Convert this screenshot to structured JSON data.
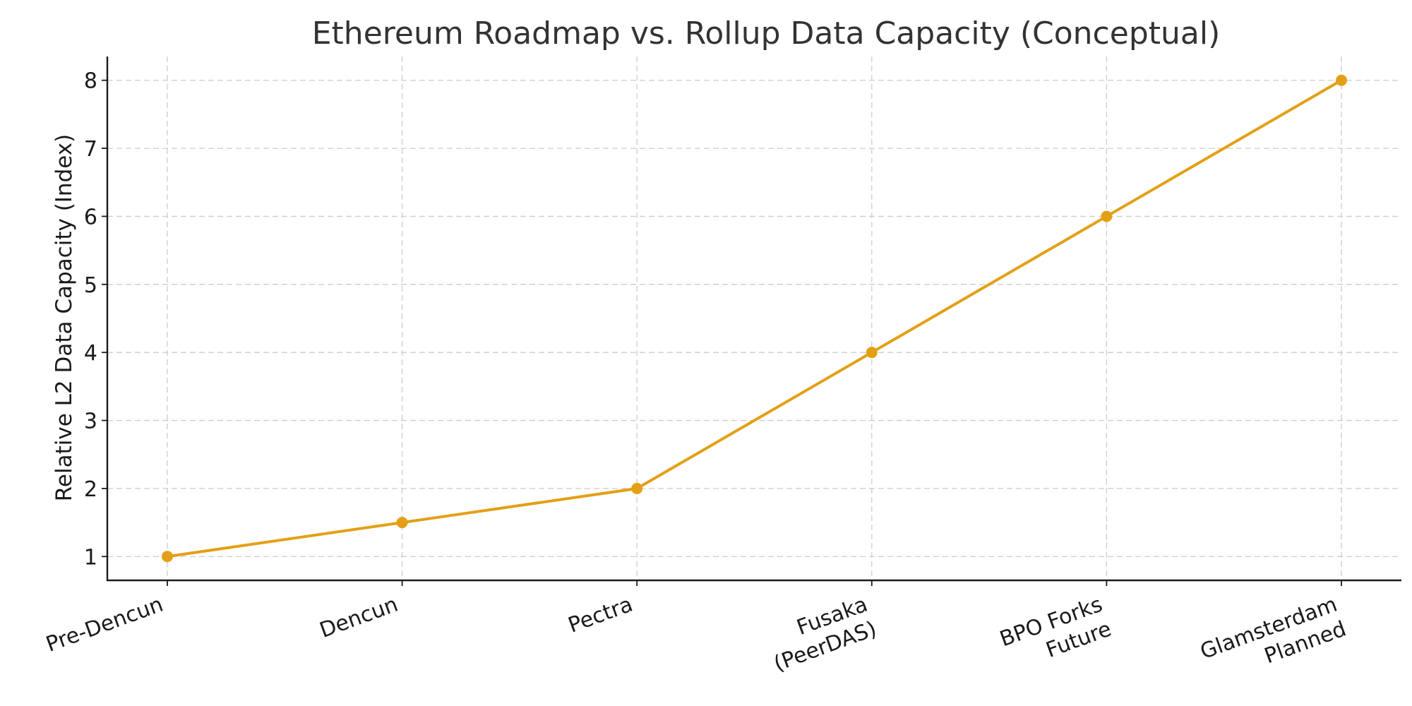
{
  "chart_data": {
    "type": "line",
    "title": "Ethereum Roadmap vs. Rollup Data Capacity (Conceptual)",
    "xlabel": "",
    "ylabel": "Relative L2 Data Capacity (Index)",
    "categories": [
      [
        "Pre-Dencun"
      ],
      [
        "Dencun"
      ],
      [
        "Pectra"
      ],
      [
        "Fusaka",
        "(PeerDAS)"
      ],
      [
        "BPO Forks",
        "Future"
      ],
      [
        "Glamsterdam",
        "Planned"
      ]
    ],
    "series": [
      {
        "values": [
          1,
          1.5,
          2,
          4,
          6,
          8
        ]
      }
    ],
    "yticks": [
      "1",
      "2",
      "3",
      "4",
      "5",
      "6",
      "7",
      "8"
    ],
    "ylim": [
      0.65,
      8.35
    ],
    "grid": true,
    "color": "#E3A014"
  }
}
